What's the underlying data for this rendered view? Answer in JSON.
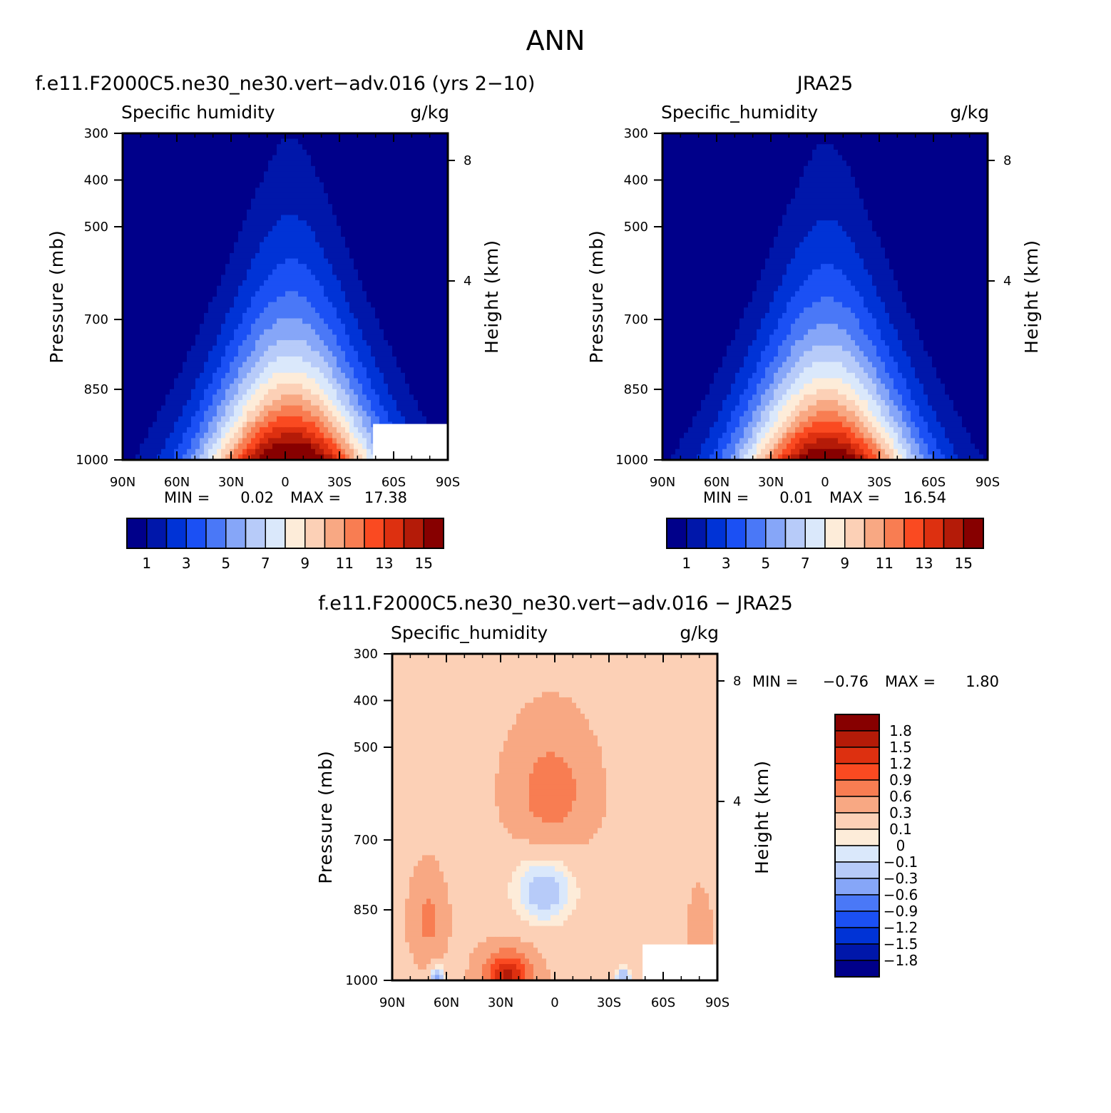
{
  "page": {
    "title": "ANN"
  },
  "palettes": {
    "abs": [
      "#00008a",
      "#0017aa",
      "#0033d6",
      "#1b50f4",
      "#4a78f7",
      "#86a6f8",
      "#b7cbf9",
      "#dae8fb",
      "#fdecd9",
      "#fcd0b6",
      "#f8a883",
      "#f87d52",
      "#fa4a21",
      "#dd3010",
      "#b41b08",
      "#870000"
    ],
    "diff": [
      "#00008a",
      "#0017aa",
      "#0033d6",
      "#1b50f4",
      "#4a78f7",
      "#86a6f8",
      "#b7cbf9",
      "#dae8fb",
      "#fdecd9",
      "#fcd0b6",
      "#f8a883",
      "#f87d52",
      "#fa4a21",
      "#dd3010",
      "#b41b08",
      "#870000"
    ]
  },
  "chart_data": [
    {
      "id": "model",
      "type": "heatmap",
      "title": "f.e11.F2000C5.ne30_ne30.vert−adv.016 (yrs 2−10)",
      "variable": "Specific humidity",
      "units": "g/kg",
      "ylabel": "Pressure (mb)",
      "y2label": "Height (km)",
      "x_ticks": [
        "90N",
        "60N",
        "30N",
        "0",
        "30S",
        "60S",
        "90S"
      ],
      "y_ticks": [
        "300",
        "400",
        "500",
        "700",
        "850",
        "1000"
      ],
      "y2_ticks": [
        "8",
        "4"
      ],
      "min_label": "MIN =",
      "min": "0.02",
      "max_label": "MAX =",
      "max": "17.38",
      "colorbar_labels": [
        "1",
        "3",
        "5",
        "7",
        "9",
        "11",
        "13",
        "15"
      ],
      "levels": [
        1,
        2,
        3,
        4,
        5,
        6,
        7,
        8,
        9,
        10,
        11,
        12,
        13,
        14,
        15
      ],
      "peak": 17.38,
      "lat_center": -3
    },
    {
      "id": "obs",
      "type": "heatmap",
      "title": "JRA25",
      "variable": "Specific_humidity",
      "units": "g/kg",
      "ylabel": "Pressure (mb)",
      "y2label": "Height (km)",
      "x_ticks": [
        "90N",
        "60N",
        "30N",
        "0",
        "30S",
        "60S",
        "90S"
      ],
      "y_ticks": [
        "300",
        "400",
        "500",
        "700",
        "850",
        "1000"
      ],
      "y2_ticks": [
        "8",
        "4"
      ],
      "min_label": "MIN =",
      "min": "0.01",
      "max_label": "MAX =",
      "max": "16.54",
      "colorbar_labels": [
        "1",
        "3",
        "5",
        "7",
        "9",
        "11",
        "13",
        "15"
      ],
      "levels": [
        1,
        2,
        3,
        4,
        5,
        6,
        7,
        8,
        9,
        10,
        11,
        12,
        13,
        14,
        15
      ],
      "peak": 16.54,
      "lat_center": -1
    },
    {
      "id": "diff",
      "type": "heatmap",
      "title": "f.e11.F2000C5.ne30_ne30.vert−adv.016 − JRA25",
      "variable": "Specific_humidity",
      "units": "g/kg",
      "ylabel": "Pressure (mb)",
      "y2label": "Height (km)",
      "x_ticks": [
        "90N",
        "60N",
        "30N",
        "0",
        "30S",
        "60S",
        "90S"
      ],
      "y_ticks": [
        "300",
        "400",
        "500",
        "700",
        "850",
        "1000"
      ],
      "y2_ticks": [
        "8",
        "4"
      ],
      "min_label": "MIN =",
      "min": "−0.76",
      "max_label": "MAX =",
      "max": "1.80",
      "colorbar_labels": [
        "1.8",
        "1.5",
        "1.2",
        "0.9",
        "0.6",
        "0.3",
        "0.1",
        "0",
        "−0.1",
        "−0.3",
        "−0.6",
        "−0.9",
        "−1.2",
        "−1.5",
        "−1.8"
      ],
      "levels": [
        -1.8,
        -1.5,
        -1.2,
        -0.9,
        -0.6,
        -0.3,
        -0.1,
        0,
        0.1,
        0.3,
        0.6,
        0.9,
        1.2,
        1.5,
        1.8
      ]
    }
  ]
}
